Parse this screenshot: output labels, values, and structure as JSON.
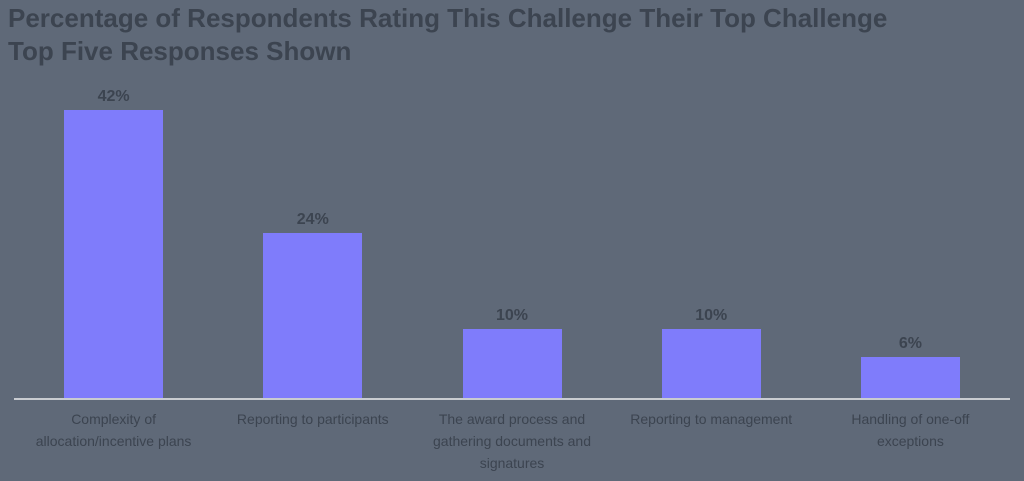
{
  "title": "Percentage of Respondents Rating This Challenge Their Top Challenge",
  "subtitle": "Top Five Responses Shown",
  "colors": {
    "background": "#5f6978",
    "bar": "#7f7cfb",
    "text": "#3c4450",
    "axis_line": "#c9ccd1"
  },
  "chart_data": {
    "type": "bar",
    "title": "Percentage of Respondents Rating This Challenge Their Top Challenge",
    "subtitle": "Top Five Responses Shown",
    "categories": [
      "Complexity of allocation/incentive plans",
      "Reporting to participants",
      "The award process and gathering documents and signatures",
      "Reporting to management",
      "Handling of one-off exceptions"
    ],
    "values": [
      42,
      24,
      10,
      10,
      6
    ],
    "value_labels": [
      "42%",
      "24%",
      "10%",
      "10%",
      "6%"
    ],
    "xlabel": "",
    "ylabel": "",
    "ylim": [
      0,
      44
    ],
    "grid": false,
    "legend": false,
    "y_axis_ticks_visible": false
  }
}
